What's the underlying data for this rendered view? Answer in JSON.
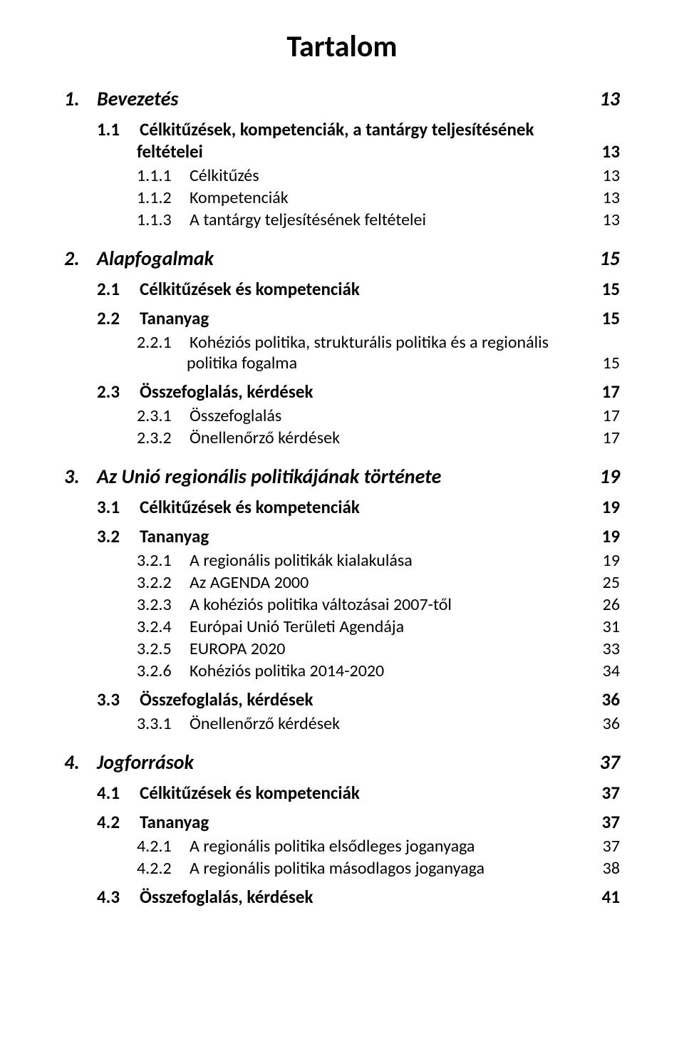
{
  "title": "Tartalom",
  "entries": [
    {
      "id": "e1",
      "level": 1,
      "style": "row",
      "num": "1.",
      "label": "Bevezetés",
      "page": "13"
    },
    {
      "id": "e2",
      "level": 2,
      "style": "wrap",
      "num": "1.1",
      "label_top": "Célkitűzések, kompetenciák, a tantárgy teljesítésének",
      "label_bot": "feltételei",
      "page": "13"
    },
    {
      "id": "e3",
      "level": 3,
      "style": "row",
      "num": "1.1.1",
      "label": "Célkitűzés",
      "page": "13"
    },
    {
      "id": "e4",
      "level": 3,
      "style": "row",
      "num": "1.1.2",
      "label": "Kompetenciák",
      "page": "13"
    },
    {
      "id": "e5",
      "level": 3,
      "style": "row",
      "num": "1.1.3",
      "label": "A tantárgy teljesítésének feltételei",
      "page": "13"
    },
    {
      "id": "e6",
      "level": 1,
      "style": "row",
      "num": "2.",
      "label": "Alapfogalmak",
      "page": "15"
    },
    {
      "id": "e7",
      "level": 2,
      "style": "row",
      "num": "2.1",
      "label": "Célkitűzések és kompetenciák",
      "page": "15"
    },
    {
      "id": "e8",
      "level": 2,
      "style": "row",
      "num": "2.2",
      "label": "Tananyag",
      "page": "15"
    },
    {
      "id": "e9",
      "level": 3,
      "style": "wrap",
      "num": "2.2.1",
      "label_top": "Kohéziós politika, strukturális politika és a regionális",
      "label_bot": "politika fogalma",
      "page": "15"
    },
    {
      "id": "e10",
      "level": 2,
      "style": "row",
      "num": "2.3",
      "label": "Összefoglalás, kérdések",
      "page": "17"
    },
    {
      "id": "e11",
      "level": 3,
      "style": "row",
      "num": "2.3.1",
      "label": "Összefoglalás",
      "page": "17"
    },
    {
      "id": "e12",
      "level": 3,
      "style": "row",
      "num": "2.3.2",
      "label": "Önellenőrző kérdések",
      "page": "17"
    },
    {
      "id": "e13",
      "level": 1,
      "style": "row",
      "num": "3.",
      "label": "Az Unió regionális politikájának története",
      "page": "19"
    },
    {
      "id": "e14",
      "level": 2,
      "style": "row",
      "num": "3.1",
      "label": "Célkitűzések és kompetenciák",
      "page": "19"
    },
    {
      "id": "e15",
      "level": 2,
      "style": "row",
      "num": "3.2",
      "label": "Tananyag",
      "page": "19"
    },
    {
      "id": "e16",
      "level": 3,
      "style": "row",
      "num": "3.2.1",
      "label": "A regionális politikák kialakulása",
      "page": "19"
    },
    {
      "id": "e17",
      "level": 3,
      "style": "row",
      "num": "3.2.2",
      "label": "Az AGENDA 2000",
      "page": "25"
    },
    {
      "id": "e18",
      "level": 3,
      "style": "row",
      "num": "3.2.3",
      "label": "A kohéziós politika változásai 2007-től",
      "page": "26"
    },
    {
      "id": "e19",
      "level": 3,
      "style": "row",
      "num": "3.2.4",
      "label": "Európai Unió Területi Agendája",
      "page": "31"
    },
    {
      "id": "e20",
      "level": 3,
      "style": "row",
      "num": "3.2.5",
      "label": "EUROPA 2020",
      "page": "33"
    },
    {
      "id": "e21",
      "level": 3,
      "style": "row",
      "num": "3.2.6",
      "label": "Kohéziós politika 2014-2020",
      "page": "34"
    },
    {
      "id": "e22",
      "level": 2,
      "style": "row",
      "num": "3.3",
      "label": "Összefoglalás, kérdések",
      "page": "36"
    },
    {
      "id": "e23",
      "level": 3,
      "style": "row",
      "num": "3.3.1",
      "label": "Önellenőrző kérdések",
      "page": "36"
    },
    {
      "id": "e24",
      "level": 1,
      "style": "row",
      "num": "4.",
      "label": "Jogforrások",
      "page": "37"
    },
    {
      "id": "e25",
      "level": 2,
      "style": "row",
      "num": "4.1",
      "label": "Célkitűzések és kompetenciák",
      "page": "37"
    },
    {
      "id": "e26",
      "level": 2,
      "style": "row",
      "num": "4.2",
      "label": "Tananyag",
      "page": "37"
    },
    {
      "id": "e27",
      "level": 3,
      "style": "row",
      "num": "4.2.1",
      "label": "A regionális politika elsődleges joganyaga",
      "page": "37"
    },
    {
      "id": "e28",
      "level": 3,
      "style": "row",
      "num": "4.2.2",
      "label": "A regionális politika másodlagos joganyaga",
      "page": "38"
    },
    {
      "id": "e29",
      "level": 2,
      "style": "row",
      "num": "4.3",
      "label": "Összefoglalás, kérdések",
      "page": "41"
    }
  ],
  "typography": {
    "title_fontsize": 42,
    "l1_fontsize": 28,
    "l2_fontsize": 25,
    "l3_fontsize": 24,
    "font_family": "Calibri"
  },
  "colors": {
    "text": "#000000",
    "background": "#ffffff"
  }
}
